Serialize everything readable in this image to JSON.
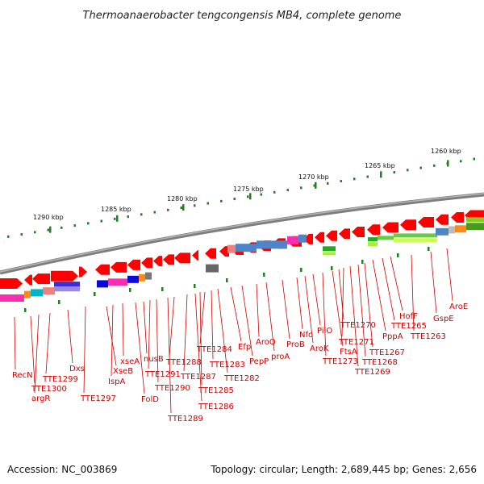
{
  "title": "Thermoanaerobacter tengcongensis MB4, complete genome",
  "footer": {
    "accession": "Accession: NC_003869",
    "summary": "Topology: circular; Length: 2,689,445 bp; Genes: 2,656"
  },
  "scale_labels": [
    "1290 kbp",
    "1285 kbp",
    "1280 kbp",
    "1275 kbp",
    "1270 kbp",
    "1265 kbp",
    "1260 kbp"
  ],
  "gene_labels": [
    "RecN",
    "TTE1300",
    "argR",
    "TTE1299",
    "Dxs",
    "TTE1297",
    "XseB",
    "IspA",
    "xseA",
    "FolD",
    "nusB",
    "TTE1291",
    "TTE1290",
    "TTE1289",
    "TTE1288",
    "TTE1287",
    "TTE1286",
    "TTE1285",
    "TTE1284",
    "TTE1283",
    "TTE1282",
    "Efp",
    "PepP",
    "AroQ",
    "proA",
    "ProB",
    "Nfo",
    "AroK",
    "PilO",
    "TTE1273",
    "FtsA",
    "TTE1270",
    "TTE1271",
    "TTE1269",
    "TTE1268",
    "TTE1267",
    "PppA",
    "TTE1265",
    "HofF",
    "TTE1263",
    "GspE",
    "AroE"
  ],
  "colors": {
    "gene_forward": "#ff0000",
    "label": "#cc0000",
    "backbone": "#888888",
    "tick": "#2a7a2a"
  }
}
